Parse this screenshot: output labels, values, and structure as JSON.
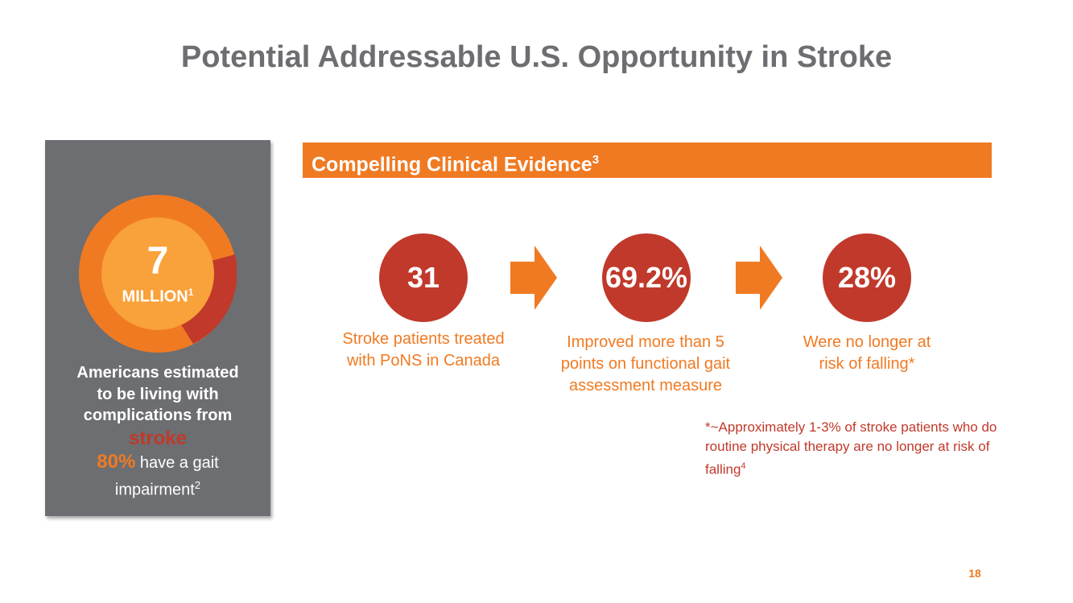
{
  "title": "Potential Addressable U.S. Opportunity in Stroke",
  "left_panel": {
    "big_number": "7",
    "million_label": "MILLION",
    "million_ref": "1",
    "desc_line1": "Americans estimated",
    "desc_line2": "to be living with",
    "desc_line3": "complications from",
    "stroke_word": "stroke",
    "gait_pct": "80%",
    "gait_text": "have a gait",
    "impairment": "impairment",
    "impairment_ref": "2"
  },
  "evidence": {
    "heading": "Compelling Clinical Evidence",
    "heading_ref": "3",
    "stats": [
      {
        "value": "31",
        "caption_line1": "Stroke patients treated",
        "caption_line2": "with PoNS in Canada",
        "caption_line3": ""
      },
      {
        "value": "69.2%",
        "caption_line1": "Improved more than 5",
        "caption_line2": "points on functional gait",
        "caption_line3": "assessment measure"
      },
      {
        "value": "28%",
        "caption_line1": "Were no longer at",
        "caption_line2": "risk of falling*",
        "caption_line3": ""
      }
    ]
  },
  "footnote": {
    "line1": "*~Approximately 1-3% of stroke patients who do",
    "line2": "routine physical therapy are no longer at risk of",
    "line3": "falling",
    "ref": "4"
  },
  "page_number": "18",
  "colors": {
    "orange": "#f07a22",
    "light_orange": "#f9a13a",
    "red": "#c0392b",
    "gray": "#6d6e71"
  }
}
